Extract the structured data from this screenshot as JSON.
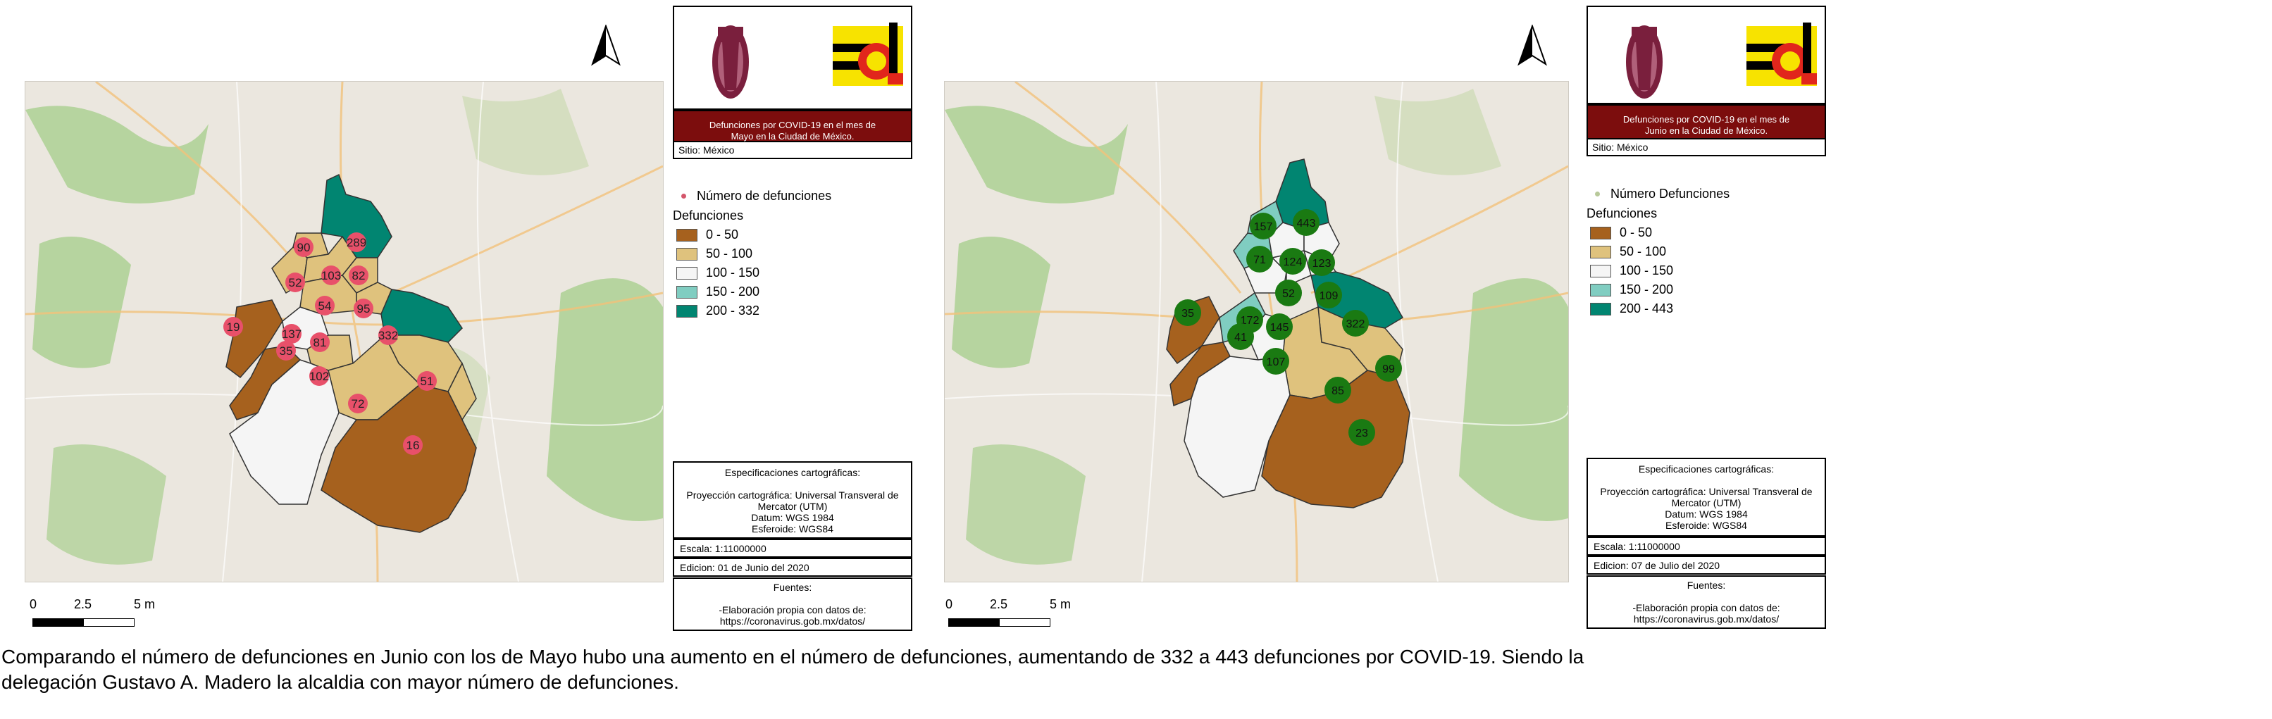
{
  "maps": [
    {
      "title": "Defunciones por COVID-19 en el mes de Mayo en la Ciudad de México.",
      "sitio": "Sitio: México",
      "points_label": "Número de defunciones",
      "point_color": "#d4566b",
      "legend_title": "Defunciones",
      "classes": [
        {
          "label": "0 - 50",
          "color": "#a6611e"
        },
        {
          "label": "50 - 100",
          "color": "#dfc27d"
        },
        {
          "label": "100 - 150",
          "color": "#f5f5f5"
        },
        {
          "label": "150 - 200",
          "color": "#80cdc1"
        },
        {
          "label": "200 - 332",
          "color": "#018571"
        }
      ],
      "markers": [
        "90",
        "289",
        "52",
        "103",
        "82",
        "54",
        "95",
        "19",
        "137",
        "81",
        "332",
        "35",
        "102",
        "51",
        "72",
        "16"
      ],
      "spec_title": "Especificaciones cartográficas:",
      "spec_lines": [
        "Proyección cartográfica: Universal Transveral de Mercator (UTM)",
        "Datum: WGS 1984",
        "Esferoide: WGS84"
      ],
      "escala": "Escala: 1:11000000",
      "edicion": "Edicion: 01 de Junio del 2020",
      "fuentes_title": "Fuentes:",
      "fuentes_text": "-Elaboración propia con datos de: https://coronavirus.gob.mx/datos/",
      "scale_labels": [
        "0",
        "2.5",
        "5 m"
      ]
    },
    {
      "title": "Defunciones por COVID-19 en el mes de Junio en la Ciudad de México.",
      "sitio": "Sitio: México",
      "points_label": "Número Defunciones",
      "point_color": "#b8c99a",
      "legend_title": "Defunciones",
      "classes": [
        {
          "label": "0 - 50",
          "color": "#a6611e"
        },
        {
          "label": "50 - 100",
          "color": "#dfc27d"
        },
        {
          "label": "100 - 150",
          "color": "#f5f5f5"
        },
        {
          "label": "150 - 200",
          "color": "#80cdc1"
        },
        {
          "label": "200 - 443",
          "color": "#018571"
        }
      ],
      "markers": [
        "157",
        "443",
        "71",
        "124",
        "123",
        "52",
        "109",
        "35",
        "172",
        "145",
        "41",
        "322",
        "107",
        "99",
        "85",
        "23"
      ],
      "spec_title": "Especificaciones cartográficas:",
      "spec_lines": [
        "Proyección cartográfica: Universal Transveral de Mercator (UTM)",
        "Datum: WGS 1984",
        "Esferoide: WGS84"
      ],
      "escala": "Escala: 1:11000000",
      "edicion": "Edicion: 07 de Julio del 2020",
      "fuentes_title": "Fuentes:",
      "fuentes_text": "-Elaboración propia con datos de: https://coronavirus.gob.mx/datos/",
      "scale_labels": [
        "0",
        "2.5",
        "5 m"
      ]
    }
  ],
  "marker_colors": {
    "mayo": "#e8506a",
    "junio": "#1a7a12"
  },
  "caption": "Comparando el número de defunciones en Junio con los de Mayo hubo una aumento en el número de defunciones, aumentando de 332 a 443 defunciones por COVID-19. Siendo la delegación Gustavo A. Madero la alcaldia con mayor número de defunciones."
}
